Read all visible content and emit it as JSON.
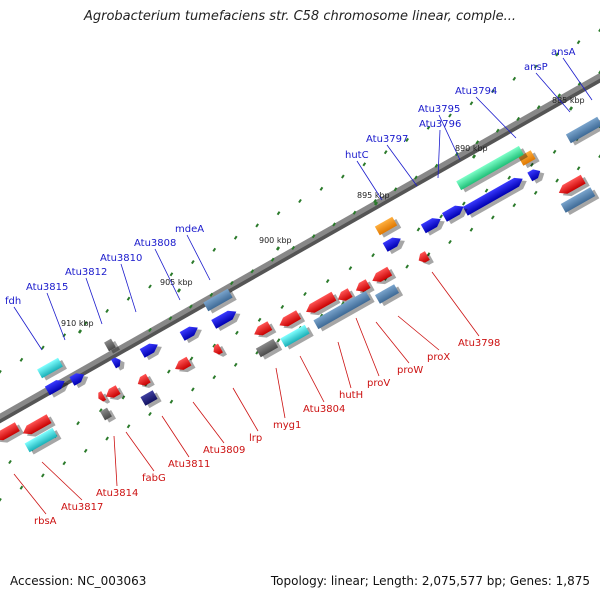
{
  "title": "Agrobacterium tumefaciens str. C58 chromosome linear, comple...",
  "footer": {
    "accession_label": "Accession: NC_003063",
    "summary_label": "Topology: linear; Length: 2,075,577 bp; Genes: 1,875"
  },
  "colors": {
    "backbone": "#888888",
    "top_label": "#1a1acc",
    "bottom_label": "#cc1111",
    "tick": "#2a7a2a"
  },
  "scale": {
    "unit": "kbp",
    "ticks": [
      "885 kbp",
      "890 kbp",
      "895 kbp",
      "900 kbp",
      "905 kbp",
      "910 kbp"
    ]
  },
  "genes_top": [
    "ansA",
    "ansP",
    "Atu3794",
    "Atu3795",
    "Atu3796",
    "Atu3797",
    "hutC",
    "mdeA",
    "Atu3808",
    "Atu3810",
    "Atu3812",
    "Atu3815",
    "fdh"
  ],
  "genes_bottom": [
    "Atu3798",
    "proX",
    "proW",
    "proV",
    "hutH",
    "Atu3804",
    "myg1",
    "lrp",
    "Atu3809",
    "Atu3811",
    "fabG",
    "Atu3814",
    "Atu3817",
    "rbsA"
  ]
}
